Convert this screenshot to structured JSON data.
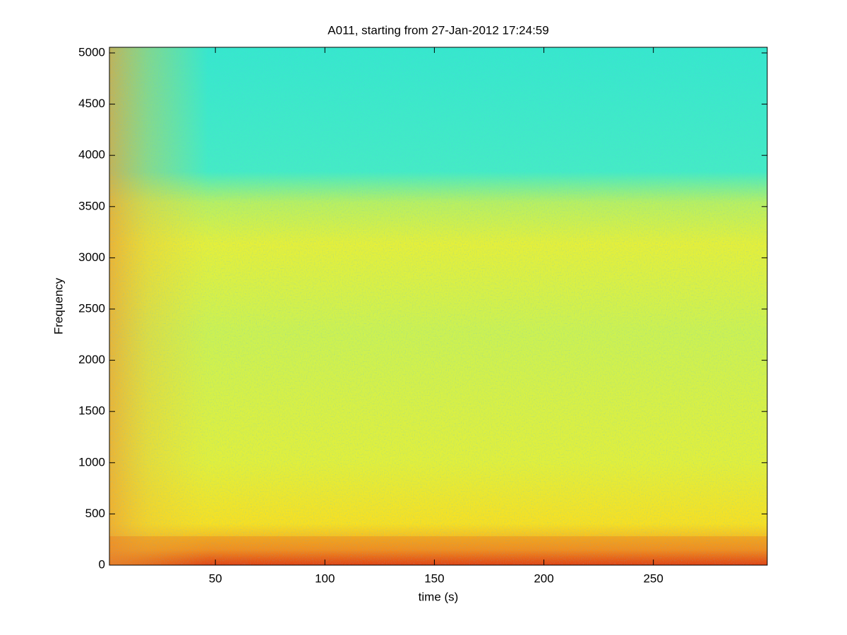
{
  "chart_data": {
    "type": "spectrogram",
    "title": "A011, starting from 27-Jan-2012 17:24:59",
    "xlabel": "time (s)",
    "ylabel": "Frequency",
    "xlim": [
      1.6,
      302
    ],
    "xticks": [
      50,
      100,
      150,
      200,
      250
    ],
    "ylim": [
      0,
      5055
    ],
    "yticks": [
      0,
      500,
      1000,
      1500,
      2000,
      2500,
      3000,
      3500,
      4000,
      4500,
      5000
    ],
    "grid": false
  }
}
